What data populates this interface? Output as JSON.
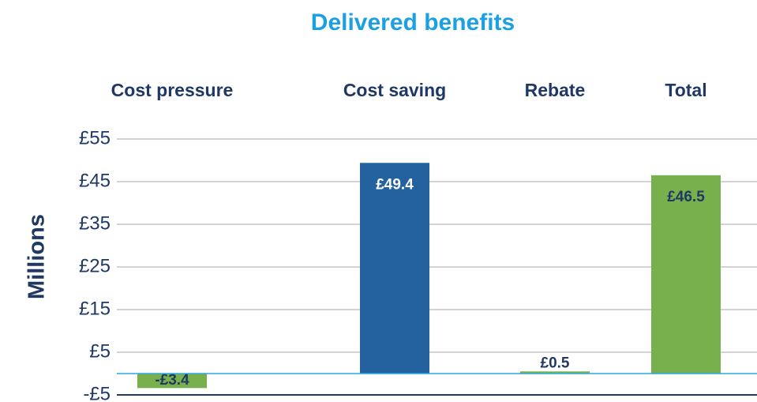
{
  "chart_data": {
    "type": "bar",
    "title": "Delivered benefits",
    "y_label": "Millions",
    "categories": [
      "Cost pressure",
      "Cost saving",
      "Rebate",
      "Total"
    ],
    "values": [
      -3.4,
      49.4,
      0.5,
      46.5
    ],
    "value_labels": [
      "-£3.4",
      "£49.4",
      "£0.5",
      "£46.5"
    ],
    "colors": [
      "#78b04e",
      "#23629f",
      "#78b04e",
      "#78b04e"
    ],
    "ylim": [
      -5,
      55
    ],
    "yticks": [
      {
        "value": -5,
        "label": "-£5"
      },
      {
        "value": 5,
        "label": "£5"
      },
      {
        "value": 15,
        "label": "£15"
      },
      {
        "value": 25,
        "label": "£25"
      },
      {
        "value": 35,
        "label": "£35"
      },
      {
        "value": 45,
        "label": "£45"
      },
      {
        "value": 55,
        "label": "£55"
      }
    ],
    "grid": true
  }
}
